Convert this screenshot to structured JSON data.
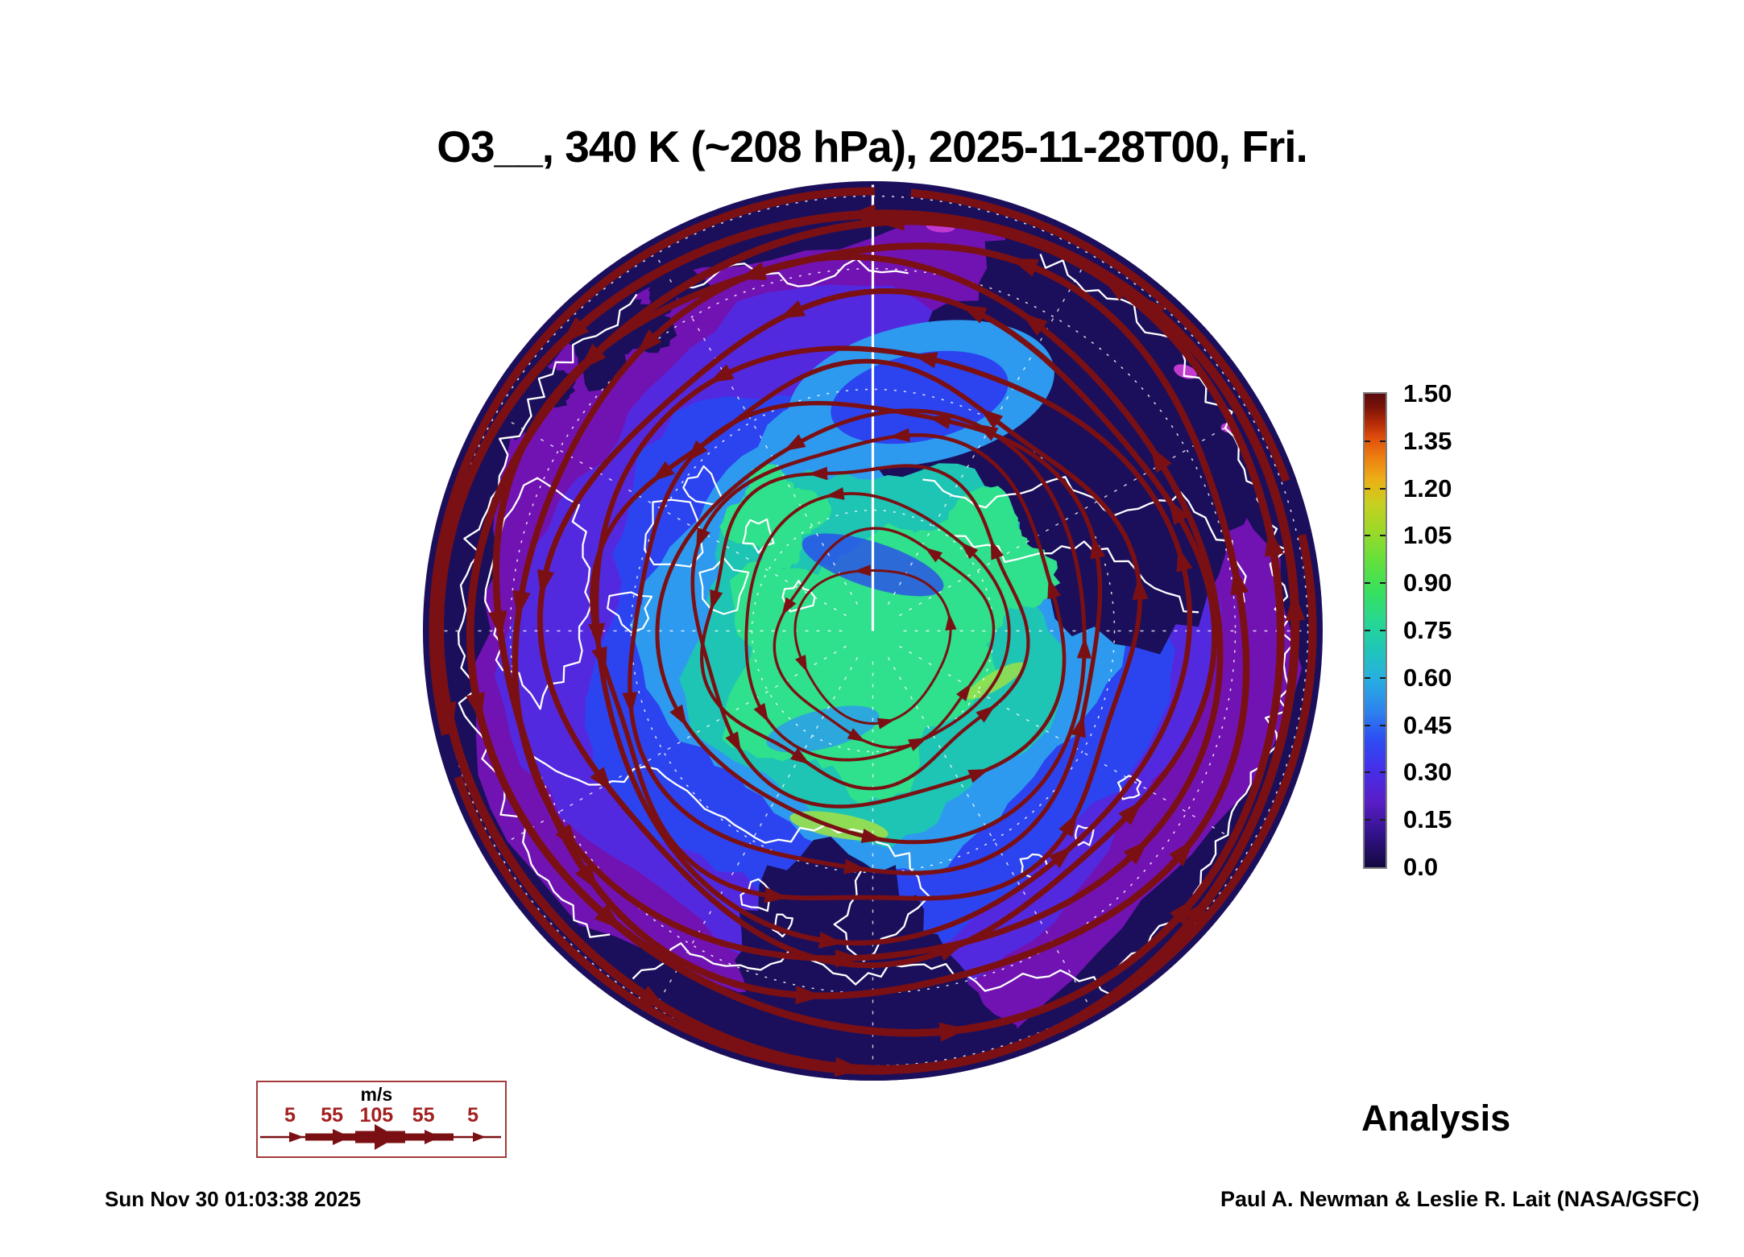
{
  "chart_data": {
    "type": "heatmap",
    "title": "O3__, 340 K (~208 hPa), 2025-11-28T00, Fri.",
    "species": "O3",
    "level": "340 K (~208 hPa)",
    "valid_time": "2025-11-28T00, Fri.",
    "projection": "north-polar orthographic globe with coastlines, dashed graticule and wind streamlines",
    "annotation": "Analysis",
    "colorbar": {
      "min": 0.0,
      "max": 1.5,
      "interval": 0.15,
      "tick_labels": [
        "1.50",
        "1.35",
        "1.20",
        "1.05",
        "0.90",
        "0.75",
        "0.60",
        "0.45",
        "0.30",
        "0.15",
        "0.0"
      ],
      "gradient_stops": [
        {
          "p": 0,
          "c": "#14093e"
        },
        {
          "p": 7,
          "c": "#32128a"
        },
        {
          "p": 14,
          "c": "#5a1ec8"
        },
        {
          "p": 21,
          "c": "#4430ea"
        },
        {
          "p": 27,
          "c": "#2d4df2"
        },
        {
          "p": 33,
          "c": "#2d83ee"
        },
        {
          "p": 40,
          "c": "#27b0e0"
        },
        {
          "p": 46,
          "c": "#1fc6b8"
        },
        {
          "p": 52,
          "c": "#27d892"
        },
        {
          "p": 58,
          "c": "#36e060"
        },
        {
          "p": 65,
          "c": "#66e03a"
        },
        {
          "p": 71,
          "c": "#9bd929"
        },
        {
          "p": 77,
          "c": "#c8cf1e"
        },
        {
          "p": 82,
          "c": "#edae16"
        },
        {
          "p": 87,
          "c": "#ed7a10"
        },
        {
          "p": 91,
          "c": "#dd4a0c"
        },
        {
          "p": 94,
          "c": "#b02a08"
        },
        {
          "p": 97,
          "c": "#7d1309"
        },
        {
          "p": 100,
          "c": "#5a0a0e"
        }
      ]
    },
    "wind_legend": {
      "unit": "m/s",
      "speeds": [
        "5",
        "55",
        "105",
        "55",
        "5"
      ]
    }
  },
  "footer": {
    "timestamp": "Sun Nov 30 01:03:38 2025",
    "credit": "Paul A. Newman & Leslie R. Lait (NASA/GSFC)"
  },
  "colors": {
    "streamline_maroon": "#7a1013",
    "legend_border": "#a33b3b",
    "legend_numbers": "#a32020",
    "coastline_white": "#ffffff",
    "graticule_white": "#ffffff",
    "field_navy": "#1b0f5c",
    "field_purple": "#7113b2",
    "field_violet": "#5329e0",
    "field_blue": "#2c44f0",
    "field_lightblue": "#2d9af0",
    "field_teal": "#1ec4b4",
    "field_green": "#2fe08c",
    "field_yellowgreen": "#9ae04a",
    "field_magenta": "#c93ed4",
    "text_black": "#000000"
  }
}
